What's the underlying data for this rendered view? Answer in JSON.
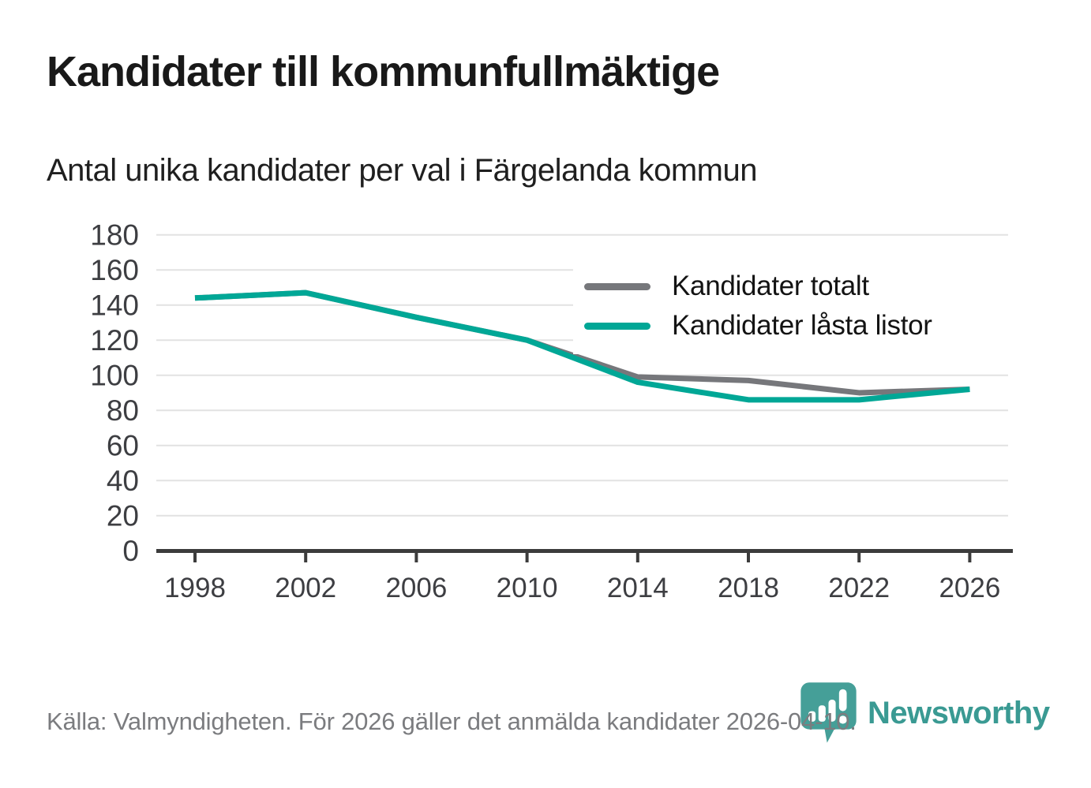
{
  "header": {
    "title": "Kandidater till kommunfullmäktige",
    "subtitle": "Antal unika kandidater per val i Färgelanda kommun"
  },
  "chart_data": {
    "type": "line",
    "title": "Kandidater till kommunfullmäktige",
    "subtitle": "Antal unika kandidater per val i Färgelanda kommun",
    "categories": [
      1998,
      2002,
      2006,
      2010,
      2014,
      2018,
      2022,
      2026
    ],
    "series": [
      {
        "name": "Kandidater totalt",
        "color": "#76777b",
        "values": [
          144,
          147,
          133,
          120,
          99,
          97,
          90,
          92
        ]
      },
      {
        "name": "Kandidater låsta listor",
        "color": "#00a796",
        "values": [
          144,
          147,
          133,
          120,
          96,
          86,
          86,
          92
        ]
      }
    ],
    "xlabel": "",
    "ylabel": "",
    "ylim": [
      0,
      180
    ],
    "ytick_step": 20,
    "grid": true,
    "legend_position": "upper right"
  },
  "theme": {
    "grid_color": "#e2e2e2",
    "axis_color": "#3c3c3c",
    "tick_label_color": "#3d3e42"
  },
  "footer": {
    "source": "Källa: Valmyndigheten. För 2026 gäller det anmälda kandidater 2026-04-10.",
    "brand": "Newsworthy",
    "logo_icon": "newsworthy-pin-barchart-icon"
  }
}
